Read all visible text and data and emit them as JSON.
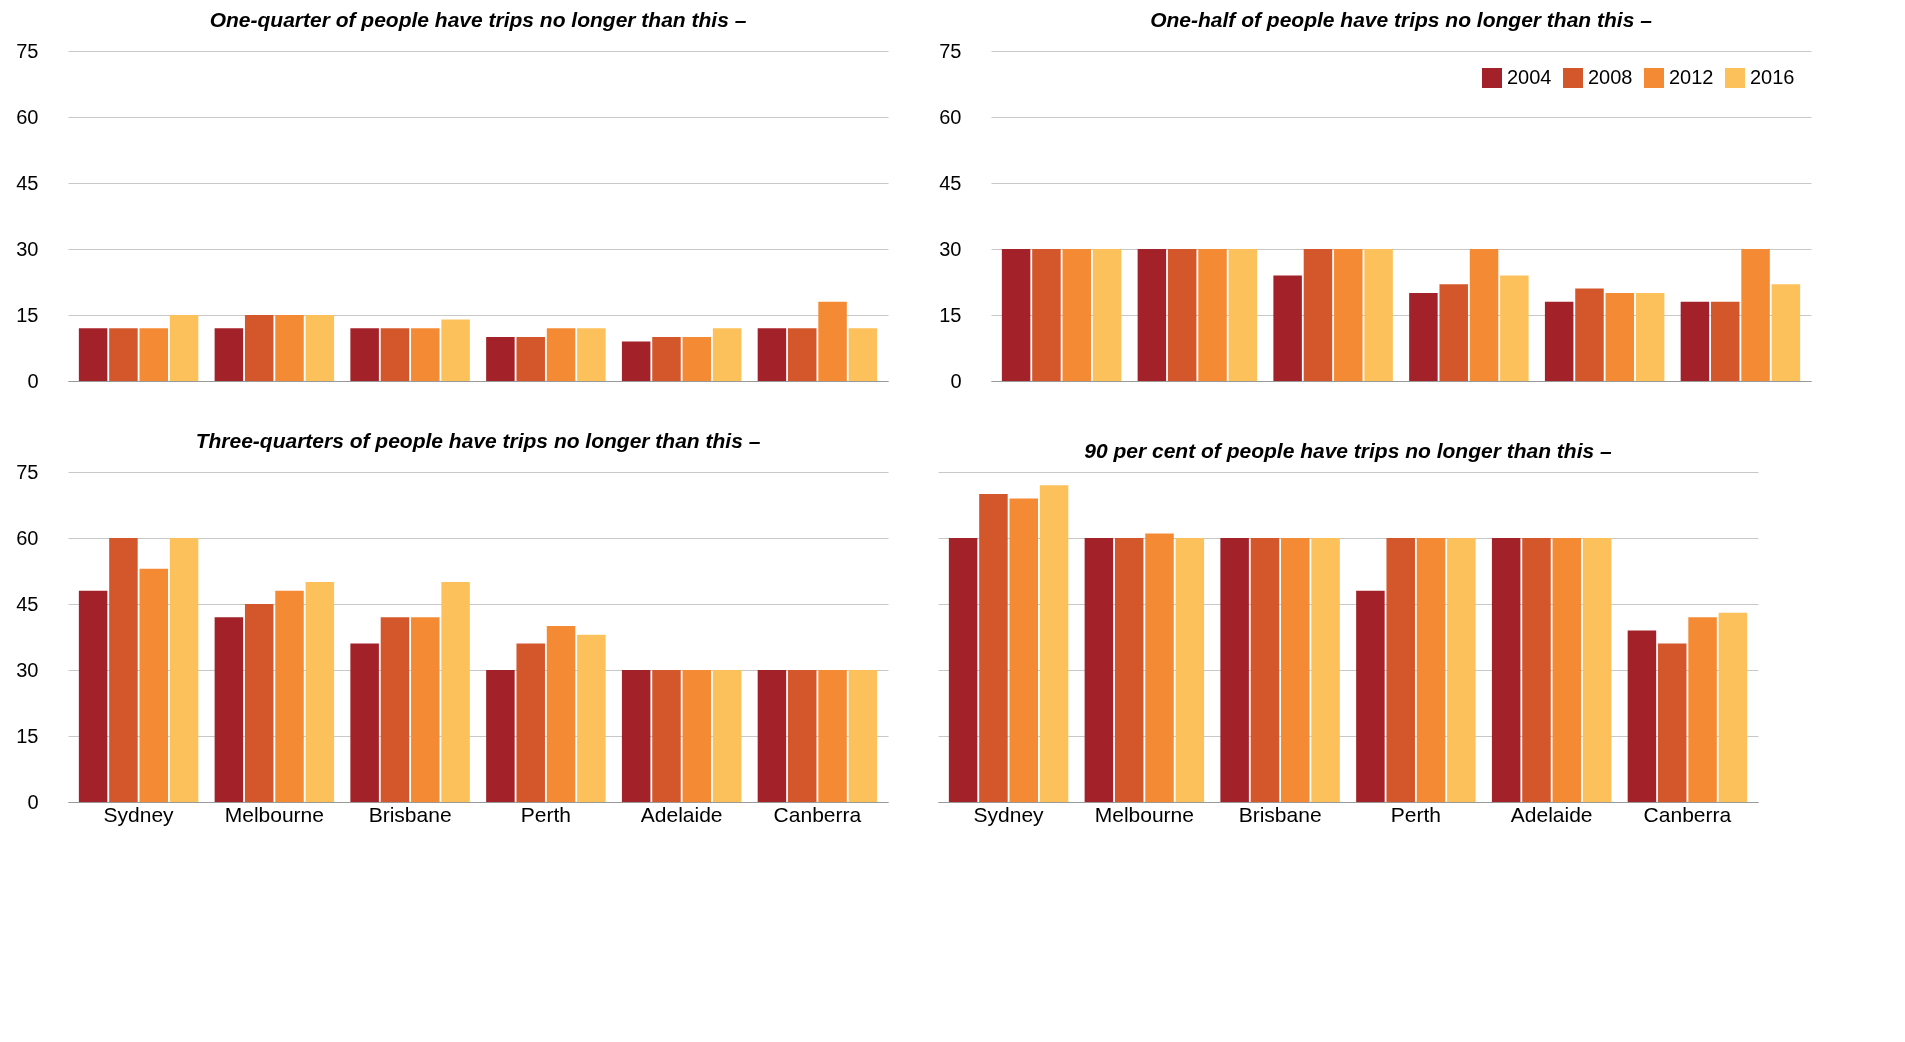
{
  "chart_data": [
    {
      "type": "bar",
      "title": "One-quarter of people have trips no longer than this –",
      "categories": [
        null,
        null,
        null,
        null,
        null,
        null
      ],
      "series": [
        {
          "color": "#a32128",
          "values": [
            12,
            12,
            12,
            10,
            9,
            12
          ]
        },
        {
          "color": "#d4572b",
          "values": [
            12,
            15,
            12,
            10,
            10,
            12
          ]
        },
        {
          "color": "#f48b34",
          "values": [
            12,
            15,
            12,
            12,
            10,
            18
          ]
        },
        {
          "color": "#fdc15b",
          "values": [
            15,
            15,
            14,
            12,
            12,
            12
          ]
        }
      ],
      "ylim": [
        0,
        75
      ],
      "yticks": [
        0,
        15,
        30,
        45,
        60,
        75
      ],
      "grid": "y",
      "tick_labels": "y"
    },
    {
      "type": "bar",
      "title": "One-half of people have trips no longer than this –",
      "categories": [
        null,
        null,
        null,
        null,
        null,
        null
      ],
      "series": [
        {
          "name": "2004",
          "color": "#a32128",
          "values": [
            30,
            30,
            24,
            20,
            18,
            18
          ]
        },
        {
          "name": "2008",
          "color": "#d4572b",
          "values": [
            30,
            30,
            30,
            22,
            21,
            18
          ]
        },
        {
          "name": "2012",
          "color": "#f48b34",
          "values": [
            30,
            30,
            30,
            30,
            20,
            30
          ]
        },
        {
          "name": "2016",
          "color": "#fdc15b",
          "values": [
            30,
            30,
            30,
            24,
            20,
            22
          ]
        }
      ],
      "ylim": [
        0,
        75
      ],
      "yticks": [
        0,
        15,
        30,
        45,
        60,
        75
      ],
      "grid": "y",
      "tick_labels": "y",
      "legend": "top right"
    },
    {
      "type": "bar",
      "title": "Three-quarters of people have trips no longer than this –",
      "categories": [
        "Sydney",
        "Melbourne",
        "Brisbane",
        "Perth",
        "Adelaide",
        "Canberra"
      ],
      "series": [
        {
          "color": "#a32128",
          "values": [
            48,
            42,
            36,
            30,
            30,
            30
          ]
        },
        {
          "color": "#d4572b",
          "values": [
            60,
            45,
            42,
            36,
            30,
            30
          ]
        },
        {
          "color": "#f48b34",
          "values": [
            53,
            48,
            42,
            40,
            30,
            30
          ]
        },
        {
          "color": "#fdc15b",
          "values": [
            60,
            50,
            50,
            38,
            30,
            30
          ]
        }
      ],
      "ylim": [
        0,
        75
      ],
      "yticks": [
        0,
        15,
        30,
        45,
        60,
        75
      ],
      "grid": "y"
    },
    {
      "type": "bar",
      "title": "90 per cent of people have trips no longer than this –",
      "categories": [
        "Sydney",
        "Melbourne",
        "Brisbane",
        "Perth",
        "Adelaide",
        "Canberra"
      ],
      "series": [
        {
          "color": "#a32128",
          "values": [
            60,
            60,
            60,
            48,
            60,
            39
          ]
        },
        {
          "color": "#d4572b",
          "values": [
            70,
            60,
            60,
            60,
            60,
            36
          ]
        },
        {
          "color": "#f48b34",
          "values": [
            69,
            61,
            60,
            60,
            60,
            42
          ]
        },
        {
          "color": "#fdc15b",
          "values": [
            72,
            60,
            60,
            60,
            60,
            43
          ]
        }
      ],
      "ylim": [
        0,
        75
      ],
      "yticks": [
        0,
        15,
        30,
        45,
        60,
        75
      ],
      "grid": "y",
      "tick_labels": "x"
    }
  ]
}
